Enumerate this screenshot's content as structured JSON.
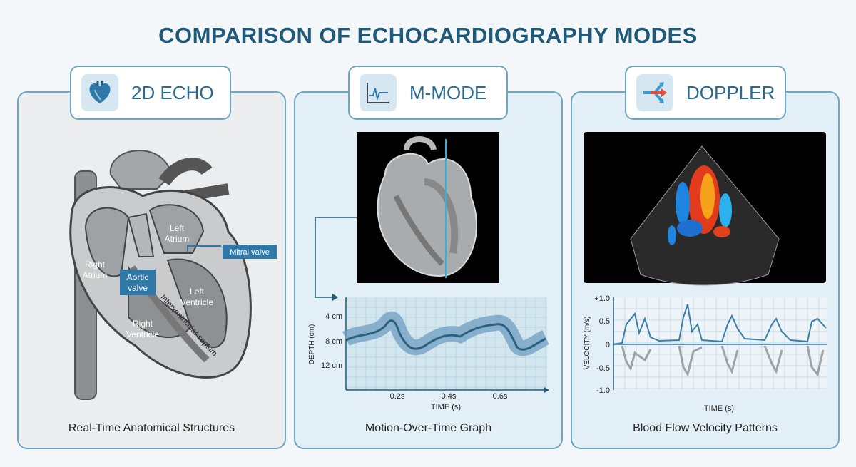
{
  "title": "COMPARISON OF ECHOCARDIOGRAPHY MODES",
  "panels": [
    {
      "tab_label": "2D ECHO",
      "icon": "heart-icon",
      "caption": "Real-Time Anatomical Structures",
      "labels": {
        "left_atrium": [
          "Left",
          "Atrium"
        ],
        "right_atrium": [
          "Right",
          "Atrium"
        ],
        "aortic_valve": [
          "Aortic",
          "valve"
        ],
        "mitral_valve": "Mitral valve",
        "left_ventricle": [
          "Left",
          "Ventricle"
        ],
        "right_ventricle": [
          "Right",
          "Ventricle"
        ],
        "septum": "Interventricular septum"
      }
    },
    {
      "tab_label": "M-MODE",
      "icon": "waveform-icon",
      "caption": "Motion-Over-Time Graph",
      "graph": {
        "ylabel": "DEPTH (cm)",
        "xlabel": "TIME (s)",
        "yticks": [
          "4 cm",
          "8 cm",
          "12 cm"
        ],
        "xticks": [
          "0.2s",
          "0.4s",
          "0.6s"
        ]
      }
    },
    {
      "tab_label": "DOPPLER",
      "icon": "flow-arrows-icon",
      "caption": "Blood Flow Velocity Patterns",
      "graph": {
        "ylabel": "VELOCITY (m/s)",
        "xlabel": "TIME (s)",
        "yticks": [
          "+1.0",
          "0.5",
          "0",
          "-0.5",
          "-1.0"
        ]
      }
    }
  ],
  "colors": {
    "accent": "#2a6b90",
    "border": "#6fa6c2",
    "label_blue": "#2f78a8"
  }
}
